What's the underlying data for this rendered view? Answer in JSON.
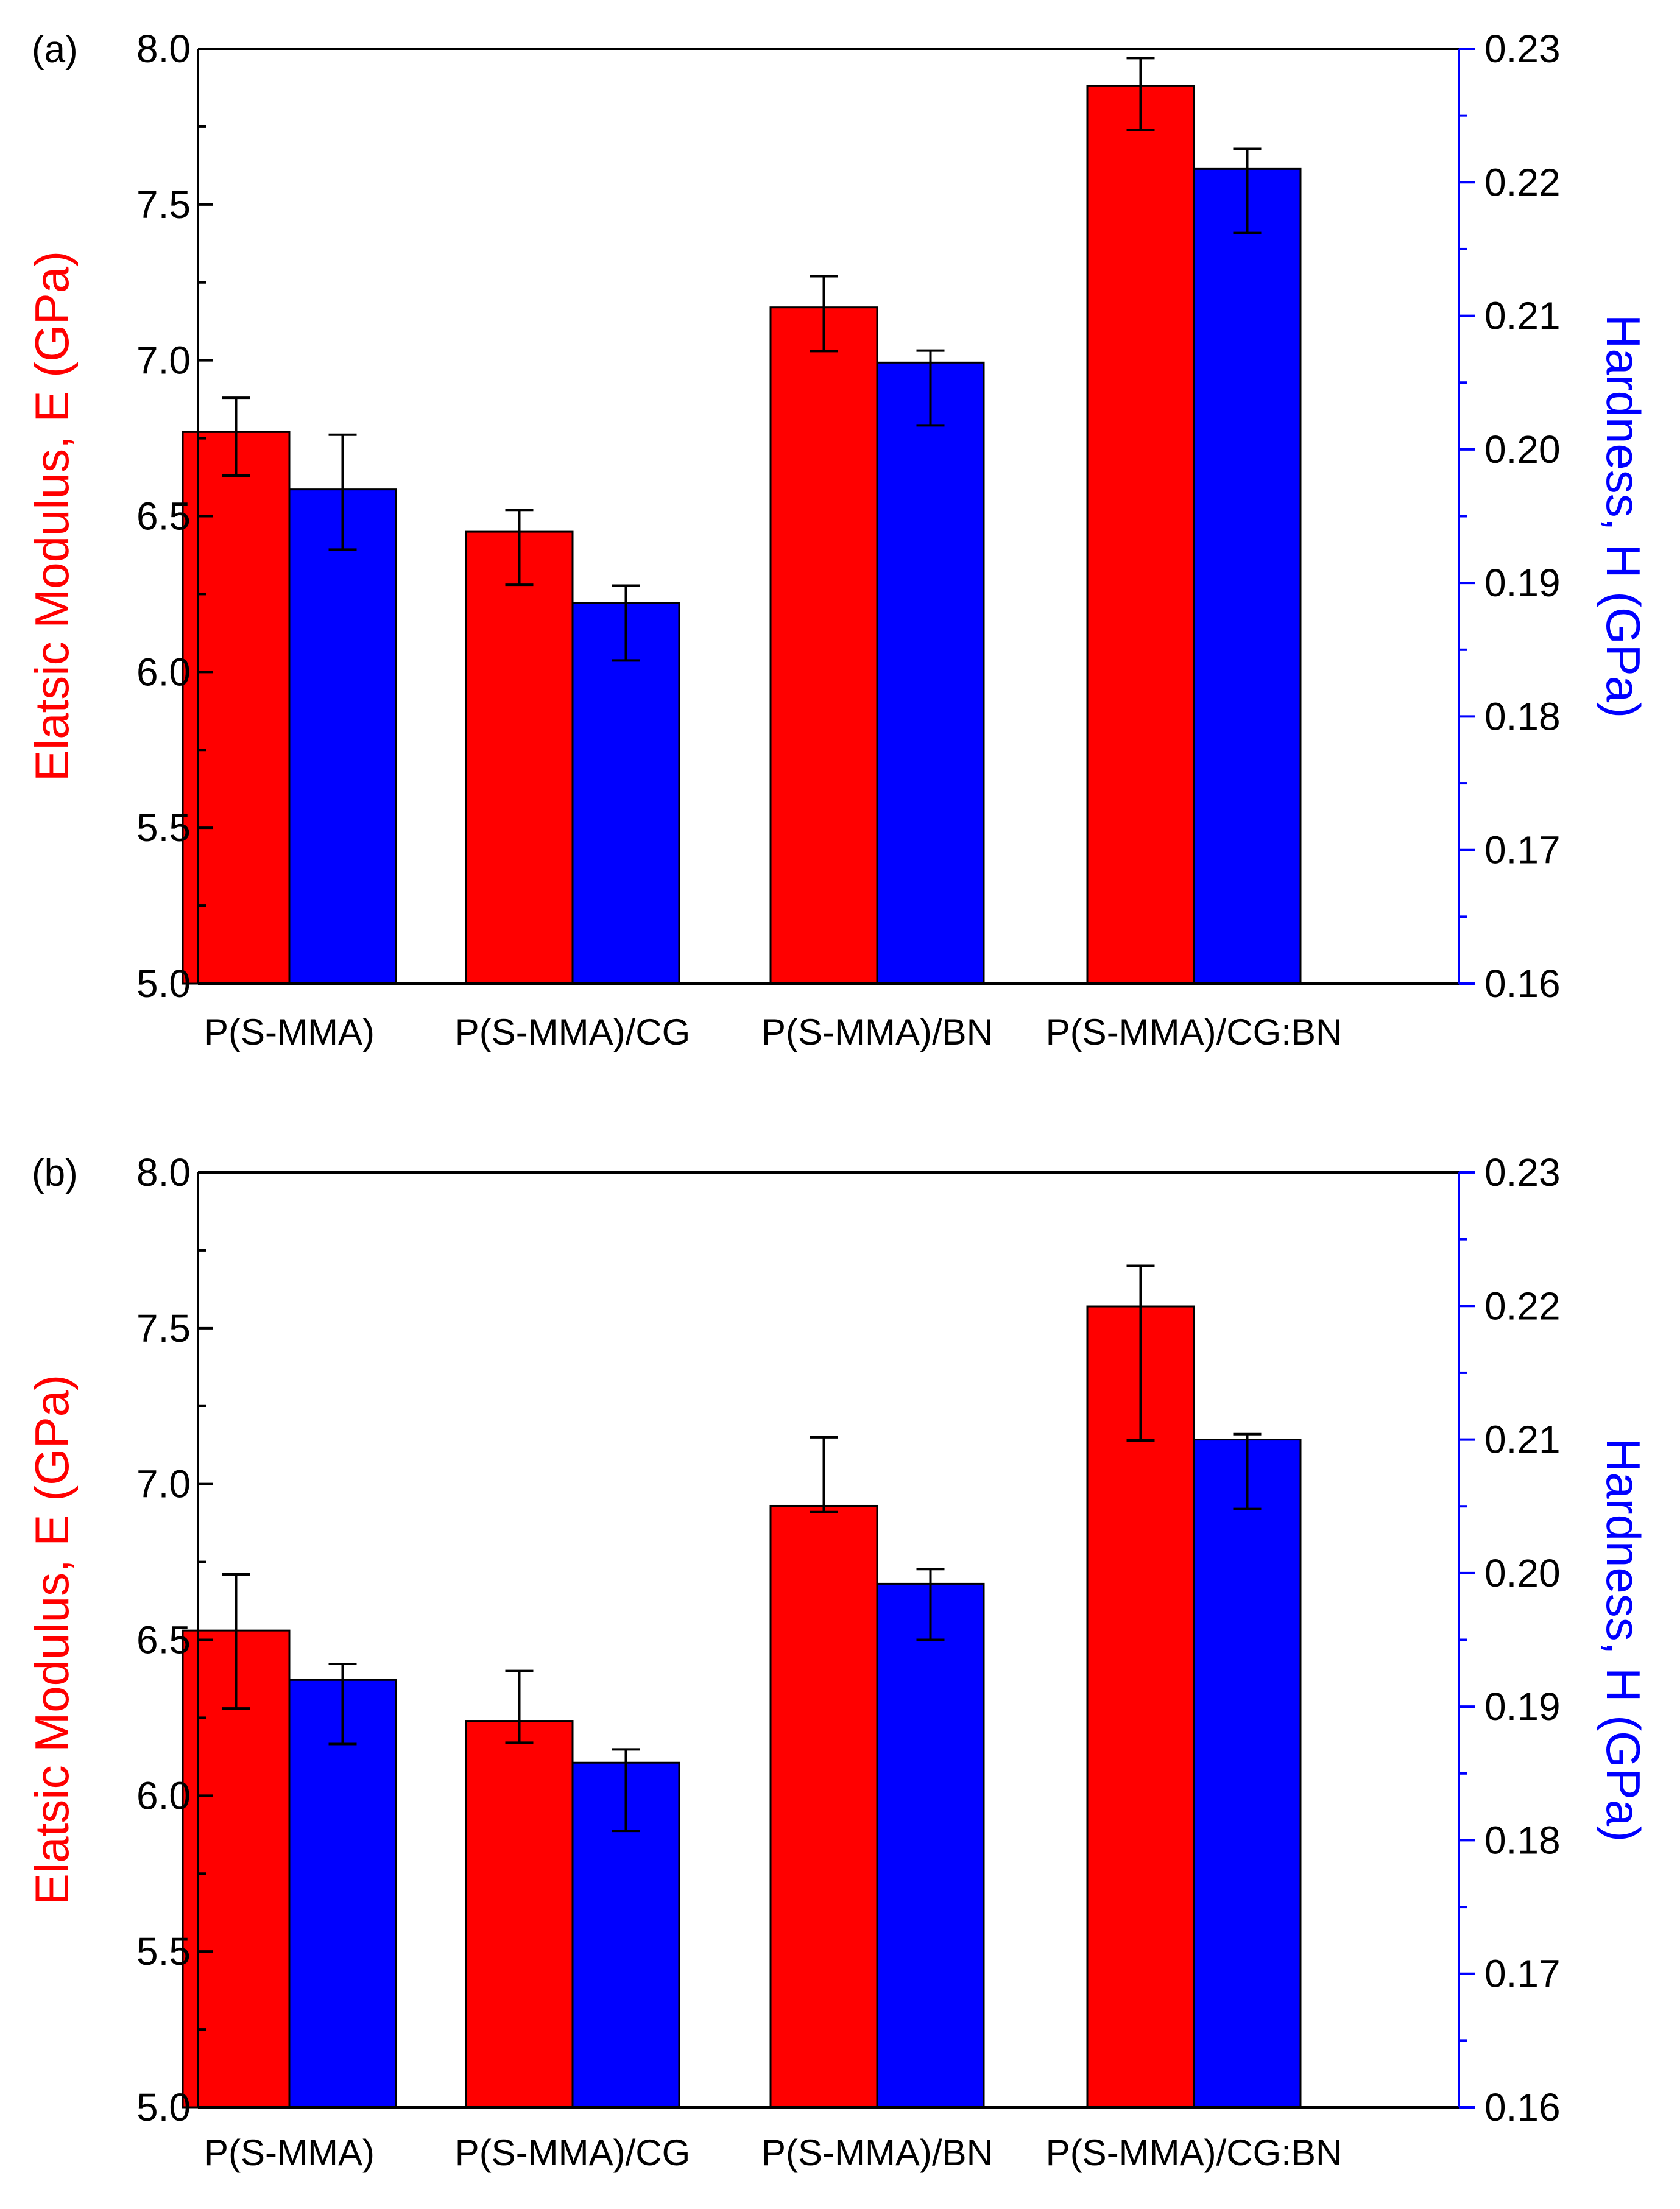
{
  "colors": {
    "modulus": "#ff0000",
    "hardness": "#0000ff",
    "axis": "#000000"
  },
  "chart_data": [
    {
      "type": "bar",
      "panel_label": "(a)",
      "categories": [
        "P(S-MMA)",
        "P(S-MMA)/CG",
        "P(S-MMA)/BN",
        "P(S-MMA)/CG:BN"
      ],
      "ylabel": "Elatsic Modulus, E (GPa)",
      "y2label": "Hardness, H (GPa)",
      "ylim": [
        5.0,
        8.0
      ],
      "y2lim": [
        0.16,
        0.23
      ],
      "yticks": [
        "5.0",
        "5.5",
        "6.0",
        "6.5",
        "7.0",
        "7.5",
        "8.0"
      ],
      "y2ticks": [
        "0.16",
        "0.17",
        "0.18",
        "0.19",
        "0.20",
        "0.21",
        "0.22",
        "0.23"
      ],
      "series": [
        {
          "name": "Elastic Modulus",
          "axis": "left",
          "color": "#ff0000",
          "values": [
            6.77,
            6.45,
            7.17,
            7.88
          ],
          "err_low": [
            6.63,
            6.28,
            7.03,
            7.74
          ],
          "err_high": [
            6.88,
            6.52,
            7.27,
            7.97
          ]
        },
        {
          "name": "Hardness",
          "axis": "right",
          "color": "#0000ff",
          "values": [
            0.197,
            0.1885,
            0.2065,
            0.221
          ],
          "err_low": [
            0.1925,
            0.1842,
            0.2018,
            0.2162
          ],
          "err_high": [
            0.2011,
            0.1898,
            0.2074,
            0.2225
          ]
        }
      ]
    },
    {
      "type": "bar",
      "panel_label": "(b)",
      "categories": [
        "P(S-MMA)",
        "P(S-MMA)/CG",
        "P(S-MMA)/BN",
        "P(S-MMA)/CG:BN"
      ],
      "ylabel": "Elatsic Modulus, E (GPa)",
      "y2label": "Hardness, H (GPa)",
      "ylim": [
        5.0,
        8.0
      ],
      "y2lim": [
        0.16,
        0.23
      ],
      "yticks": [
        "5.0",
        "5.5",
        "6.0",
        "6.5",
        "7.0",
        "7.5",
        "8.0"
      ],
      "y2ticks": [
        "0.16",
        "0.17",
        "0.18",
        "0.19",
        "0.20",
        "0.21",
        "0.22",
        "0.23"
      ],
      "series": [
        {
          "name": "Elastic Modulus",
          "axis": "left",
          "color": "#ff0000",
          "values": [
            6.53,
            6.24,
            6.93,
            7.57
          ],
          "err_low": [
            6.28,
            6.17,
            6.91,
            7.14
          ],
          "err_high": [
            6.71,
            6.4,
            7.15,
            7.7
          ]
        },
        {
          "name": "Hardness",
          "axis": "right",
          "color": "#0000ff",
          "values": [
            0.192,
            0.1858,
            0.1992,
            0.21
          ],
          "err_low": [
            0.1872,
            0.1807,
            0.195,
            0.2048
          ],
          "err_high": [
            0.1932,
            0.1868,
            0.2003,
            0.2104
          ]
        }
      ]
    }
  ]
}
